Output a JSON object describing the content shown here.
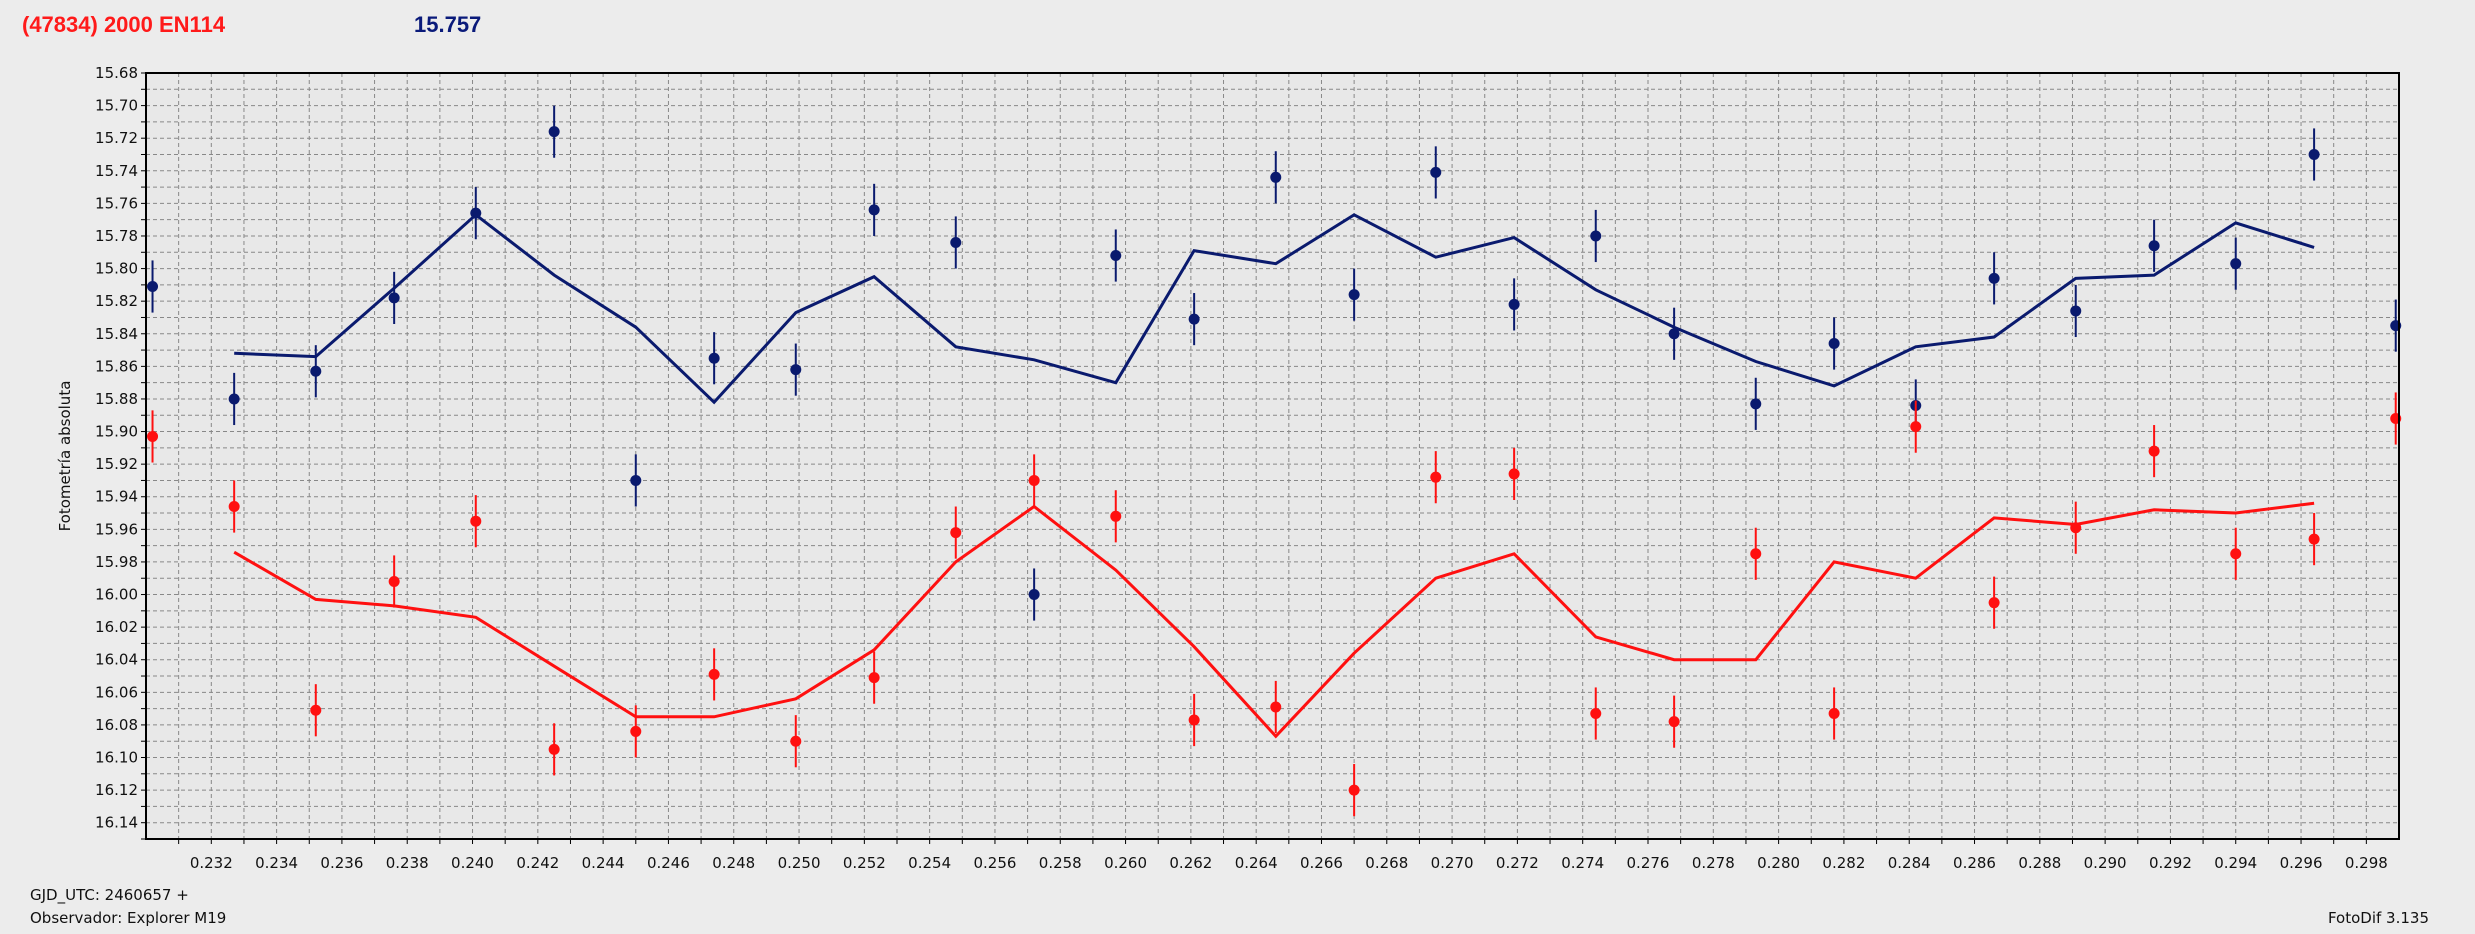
{
  "header": {
    "title": "(47834) 2000 EN114",
    "value": "15.757"
  },
  "footer": {
    "gjd": "GJD_UTC: 2460657 +",
    "observer": "Observador: Explorer M19",
    "app": "FotoDif 3.135"
  },
  "colors": {
    "blue": "#0a1a6e",
    "red": "#ff1010",
    "grid": "#888888",
    "plot_bg": "#e8e8e8"
  },
  "chart_data": {
    "type": "scatter",
    "title": "",
    "xlabel": "",
    "ylabel": "Fotometría absoluta",
    "xlim": [
      0.23,
      0.299
    ],
    "ylim": [
      15.68,
      16.15
    ],
    "y_inverted": true,
    "x_ticks": [
      "0.232",
      "0.234",
      "0.236",
      "0.238",
      "0.240",
      "0.242",
      "0.244",
      "0.246",
      "0.248",
      "0.250",
      "0.252",
      "0.254",
      "0.256",
      "0.258",
      "0.260",
      "0.262",
      "0.264",
      "0.266",
      "0.268",
      "0.270",
      "0.272",
      "0.274",
      "0.276",
      "0.278",
      "0.280",
      "0.282",
      "0.284",
      "0.286",
      "0.288",
      "0.290",
      "0.292",
      "0.294",
      "0.296",
      "0.298"
    ],
    "y_ticks": [
      "15.68",
      "15.70",
      "15.72",
      "15.74",
      "15.76",
      "15.78",
      "15.80",
      "15.82",
      "15.84",
      "15.86",
      "15.88",
      "15.90",
      "15.92",
      "15.94",
      "15.96",
      "15.98",
      "16.00",
      "16.02",
      "16.04",
      "16.06",
      "16.08",
      "16.10",
      "16.12",
      "16.14"
    ],
    "grid": true,
    "series": [
      {
        "color": "#0a1a6e",
        "points": [
          {
            "x": 0.2302,
            "y": 15.811,
            "err": 0.016
          },
          {
            "x": 0.2327,
            "y": 15.88,
            "err": 0.016
          },
          {
            "x": 0.2352,
            "y": 15.863,
            "err": 0.016
          },
          {
            "x": 0.2376,
            "y": 15.818,
            "err": 0.016
          },
          {
            "x": 0.2401,
            "y": 15.766,
            "err": 0.016
          },
          {
            "x": 0.2425,
            "y": 15.716,
            "err": 0.016
          },
          {
            "x": 0.245,
            "y": 15.93,
            "err": 0.016
          },
          {
            "x": 0.2474,
            "y": 15.855,
            "err": 0.016
          },
          {
            "x": 0.2499,
            "y": 15.862,
            "err": 0.016
          },
          {
            "x": 0.2523,
            "y": 15.764,
            "err": 0.016
          },
          {
            "x": 0.2548,
            "y": 15.784,
            "err": 0.016
          },
          {
            "x": 0.2572,
            "y": 16.0,
            "err": 0.016
          },
          {
            "x": 0.2597,
            "y": 15.792,
            "err": 0.016
          },
          {
            "x": 0.2621,
            "y": 15.831,
            "err": 0.016
          },
          {
            "x": 0.2646,
            "y": 15.744,
            "err": 0.016
          },
          {
            "x": 0.267,
            "y": 15.816,
            "err": 0.016
          },
          {
            "x": 0.2695,
            "y": 15.741,
            "err": 0.016
          },
          {
            "x": 0.2719,
            "y": 15.822,
            "err": 0.016
          },
          {
            "x": 0.2744,
            "y": 15.78,
            "err": 0.016
          },
          {
            "x": 0.2768,
            "y": 15.84,
            "err": 0.016
          },
          {
            "x": 0.2793,
            "y": 15.883,
            "err": 0.016
          },
          {
            "x": 0.2817,
            "y": 15.846,
            "err": 0.016
          },
          {
            "x": 0.2842,
            "y": 15.884,
            "err": 0.016
          },
          {
            "x": 0.2866,
            "y": 15.806,
            "err": 0.016
          },
          {
            "x": 0.2891,
            "y": 15.826,
            "err": 0.016
          },
          {
            "x": 0.2915,
            "y": 15.786,
            "err": 0.016
          },
          {
            "x": 0.294,
            "y": 15.797,
            "err": 0.016
          },
          {
            "x": 0.2964,
            "y": 15.73,
            "err": 0.016
          },
          {
            "x": 0.2989,
            "y": 15.835,
            "err": 0.016
          }
        ],
        "model": [
          {
            "x": 0.2327,
            "y": 15.852
          },
          {
            "x": 0.2352,
            "y": 15.854
          },
          {
            "x": 0.2376,
            "y": 15.812
          },
          {
            "x": 0.2401,
            "y": 15.767
          },
          {
            "x": 0.2425,
            "y": 15.804
          },
          {
            "x": 0.245,
            "y": 15.836
          },
          {
            "x": 0.2474,
            "y": 15.882
          },
          {
            "x": 0.2499,
            "y": 15.827
          },
          {
            "x": 0.2523,
            "y": 15.805
          },
          {
            "x": 0.2548,
            "y": 15.848
          },
          {
            "x": 0.2572,
            "y": 15.856
          },
          {
            "x": 0.2597,
            "y": 15.87
          },
          {
            "x": 0.2621,
            "y": 15.789
          },
          {
            "x": 0.2646,
            "y": 15.797
          },
          {
            "x": 0.267,
            "y": 15.767
          },
          {
            "x": 0.2695,
            "y": 15.793
          },
          {
            "x": 0.2719,
            "y": 15.781
          },
          {
            "x": 0.2744,
            "y": 15.813
          },
          {
            "x": 0.2768,
            "y": 15.836
          },
          {
            "x": 0.2793,
            "y": 15.857
          },
          {
            "x": 0.2817,
            "y": 15.872
          },
          {
            "x": 0.2842,
            "y": 15.848
          },
          {
            "x": 0.2866,
            "y": 15.842
          },
          {
            "x": 0.2891,
            "y": 15.806
          },
          {
            "x": 0.2915,
            "y": 15.804
          },
          {
            "x": 0.294,
            "y": 15.772
          },
          {
            "x": 0.2964,
            "y": 15.787
          }
        ]
      },
      {
        "color": "#ff1010",
        "points": [
          {
            "x": 0.2302,
            "y": 15.903,
            "err": 0.016
          },
          {
            "x": 0.2327,
            "y": 15.946,
            "err": 0.016
          },
          {
            "x": 0.2352,
            "y": 16.071,
            "err": 0.016
          },
          {
            "x": 0.2376,
            "y": 15.992,
            "err": 0.016
          },
          {
            "x": 0.2401,
            "y": 15.955,
            "err": 0.016
          },
          {
            "x": 0.2425,
            "y": 16.095,
            "err": 0.016
          },
          {
            "x": 0.245,
            "y": 16.084,
            "err": 0.016
          },
          {
            "x": 0.2474,
            "y": 16.049,
            "err": 0.016
          },
          {
            "x": 0.2499,
            "y": 16.09,
            "err": 0.016
          },
          {
            "x": 0.2523,
            "y": 16.051,
            "err": 0.016
          },
          {
            "x": 0.2548,
            "y": 15.962,
            "err": 0.016
          },
          {
            "x": 0.2572,
            "y": 15.93,
            "err": 0.016
          },
          {
            "x": 0.2597,
            "y": 15.952,
            "err": 0.016
          },
          {
            "x": 0.2621,
            "y": 16.077,
            "err": 0.016
          },
          {
            "x": 0.2646,
            "y": 16.069,
            "err": 0.016
          },
          {
            "x": 0.267,
            "y": 16.12,
            "err": 0.016
          },
          {
            "x": 0.2695,
            "y": 15.928,
            "err": 0.016
          },
          {
            "x": 0.2719,
            "y": 15.926,
            "err": 0.016
          },
          {
            "x": 0.2744,
            "y": 16.073,
            "err": 0.016
          },
          {
            "x": 0.2768,
            "y": 16.078,
            "err": 0.016
          },
          {
            "x": 0.2793,
            "y": 15.975,
            "err": 0.016
          },
          {
            "x": 0.2817,
            "y": 16.073,
            "err": 0.016
          },
          {
            "x": 0.2842,
            "y": 15.897,
            "err": 0.016
          },
          {
            "x": 0.2866,
            "y": 16.005,
            "err": 0.016
          },
          {
            "x": 0.2891,
            "y": 15.959,
            "err": 0.016
          },
          {
            "x": 0.2915,
            "y": 15.912,
            "err": 0.016
          },
          {
            "x": 0.294,
            "y": 15.975,
            "err": 0.016
          },
          {
            "x": 0.2964,
            "y": 15.966,
            "err": 0.016
          },
          {
            "x": 0.2989,
            "y": 15.892,
            "err": 0.016
          }
        ],
        "model": [
          {
            "x": 0.2327,
            "y": 15.974
          },
          {
            "x": 0.2352,
            "y": 16.003
          },
          {
            "x": 0.2376,
            "y": 16.007
          },
          {
            "x": 0.2401,
            "y": 16.014
          },
          {
            "x": 0.2425,
            "y": 16.044
          },
          {
            "x": 0.245,
            "y": 16.075
          },
          {
            "x": 0.2474,
            "y": 16.075
          },
          {
            "x": 0.2499,
            "y": 16.064
          },
          {
            "x": 0.2523,
            "y": 16.034
          },
          {
            "x": 0.2548,
            "y": 15.98
          },
          {
            "x": 0.2572,
            "y": 15.946
          },
          {
            "x": 0.2597,
            "y": 15.985
          },
          {
            "x": 0.2621,
            "y": 16.032
          },
          {
            "x": 0.2646,
            "y": 16.087
          },
          {
            "x": 0.267,
            "y": 16.036
          },
          {
            "x": 0.2695,
            "y": 15.99
          },
          {
            "x": 0.2719,
            "y": 15.975
          },
          {
            "x": 0.2744,
            "y": 16.026
          },
          {
            "x": 0.2768,
            "y": 16.04
          },
          {
            "x": 0.2793,
            "y": 16.04
          },
          {
            "x": 0.2817,
            "y": 15.98
          },
          {
            "x": 0.2842,
            "y": 15.99
          },
          {
            "x": 0.2866,
            "y": 15.953
          },
          {
            "x": 0.2891,
            "y": 15.957
          },
          {
            "x": 0.2915,
            "y": 15.948
          },
          {
            "x": 0.294,
            "y": 15.95
          },
          {
            "x": 0.2964,
            "y": 15.944
          }
        ]
      }
    ]
  }
}
